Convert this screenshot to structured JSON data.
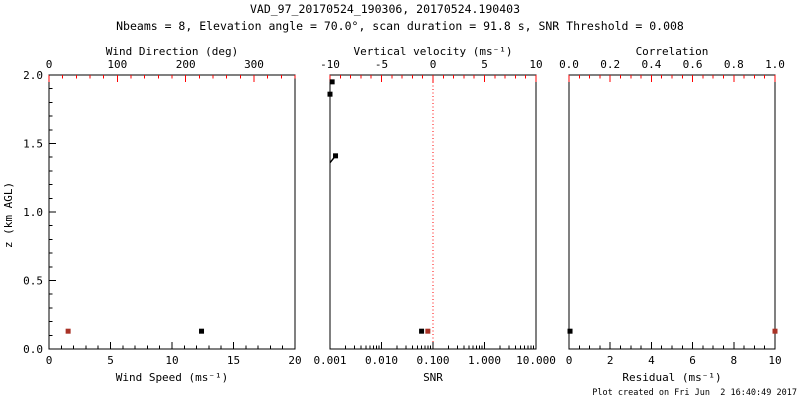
{
  "title": "VAD_97_20170524_190306, 20170524.190403",
  "subtitle": "Nbeams = 8, Elevation angle = 70.0°, scan duration = 91.8 s, SNR Threshold = 0.008",
  "footer": "Plot created on Fri Jun  2 16:40:49 2017",
  "colors": {
    "background": "#ffffff",
    "frame": "#000000",
    "axis_red": "#ff0000",
    "marker_black": "#000000",
    "marker_red": "#a93226"
  },
  "y_axis": {
    "label": "z (km AGL)",
    "min": 0,
    "max": 2,
    "major_ticks": [
      {
        "v": 0.0,
        "label": "0.0"
      },
      {
        "v": 0.5,
        "label": "0.5"
      },
      {
        "v": 1.0,
        "label": "1.0"
      },
      {
        "v": 1.5,
        "label": "1.5"
      },
      {
        "v": 2.0,
        "label": "2.0"
      }
    ],
    "minor_step": 0.1
  },
  "chart_data": [
    {
      "id": "wind",
      "type": "scatter",
      "show_y_labels": true,
      "bottom_axis": {
        "label": "Wind Speed (ms⁻¹)",
        "scale": "linear",
        "min": 0,
        "max": 20,
        "major_ticks": [
          {
            "v": 0,
            "label": "0"
          },
          {
            "v": 5,
            "label": "5"
          },
          {
            "v": 10,
            "label": "10"
          },
          {
            "v": 15,
            "label": "15"
          },
          {
            "v": 20,
            "label": "20"
          }
        ],
        "minor_step": 1
      },
      "top_axis": {
        "label": "Wind Direction (deg)",
        "scale": "linear",
        "min": 0,
        "max": 360,
        "major_ticks": [
          {
            "v": 0,
            "label": "0"
          },
          {
            "v": 100,
            "label": "100"
          },
          {
            "v": 200,
            "label": "200"
          },
          {
            "v": 300,
            "label": "300"
          }
        ],
        "minor_step": 20
      },
      "series": [
        {
          "name": "wind-speed",
          "axis": "bottom",
          "color": "black",
          "marker": "square",
          "points": [
            {
              "x": 12.4,
              "z": 0.13
            }
          ]
        },
        {
          "name": "wind-direction",
          "axis": "top",
          "color": "red",
          "marker": "square",
          "points": [
            {
              "x": 28,
              "z": 0.13
            }
          ]
        }
      ]
    },
    {
      "id": "snr",
      "type": "scatter",
      "show_y_labels": false,
      "bottom_axis": {
        "label": "SNR",
        "scale": "log",
        "min": 0.001,
        "max": 10,
        "major_ticks": [
          {
            "v": 0.001,
            "label": "0.001"
          },
          {
            "v": 0.01,
            "label": "0.010"
          },
          {
            "v": 0.1,
            "label": "0.100"
          },
          {
            "v": 1,
            "label": "1.000"
          },
          {
            "v": 10,
            "label": "10.000"
          }
        ]
      },
      "top_axis": {
        "label": "Vertical velocity (ms⁻¹)",
        "scale": "linear",
        "min": -10,
        "max": 10,
        "major_ticks": [
          {
            "v": -10,
            "label": "-10"
          },
          {
            "v": -5,
            "label": "-5"
          },
          {
            "v": 0,
            "label": "0"
          },
          {
            "v": 5,
            "label": "5"
          },
          {
            "v": 10,
            "label": "10"
          }
        ],
        "minor_step": 1
      },
      "reference_line": {
        "axis": "top",
        "value": 0,
        "style": "dotted",
        "color": "red"
      },
      "segments": [
        {
          "axis": "bottom",
          "x1": 0.001,
          "z1": 1.36,
          "x2": 0.00128,
          "z2": 1.41
        },
        {
          "axis": "bottom",
          "x1": 0.001,
          "z1": 1.95,
          "x2": 0.0011,
          "z2": 1.95
        }
      ],
      "series": [
        {
          "name": "snr",
          "axis": "bottom",
          "color": "black",
          "marker": "square",
          "points": [
            {
              "x": 0.0011,
              "z": 1.95
            },
            {
              "x": 0.001,
              "z": 1.86
            },
            {
              "x": 0.00128,
              "z": 1.41
            },
            {
              "x": 0.06,
              "z": 0.13
            }
          ]
        },
        {
          "name": "vertical-velocity",
          "axis": "top",
          "color": "red",
          "marker": "square",
          "points": [
            {
              "x": -0.5,
              "z": 0.13
            }
          ]
        }
      ]
    },
    {
      "id": "residual",
      "type": "scatter",
      "show_y_labels": false,
      "bottom_axis": {
        "label": "Residual (ms⁻¹)",
        "scale": "linear",
        "min": 0,
        "max": 10,
        "major_ticks": [
          {
            "v": 0,
            "label": "0"
          },
          {
            "v": 2,
            "label": "2"
          },
          {
            "v": 4,
            "label": "4"
          },
          {
            "v": 6,
            "label": "6"
          },
          {
            "v": 8,
            "label": "8"
          },
          {
            "v": 10,
            "label": "10"
          }
        ],
        "minor_step": 0.5
      },
      "top_axis": {
        "label": "Correlation",
        "scale": "linear",
        "min": 0,
        "max": 1,
        "major_ticks": [
          {
            "v": 0.0,
            "label": "0.0"
          },
          {
            "v": 0.2,
            "label": "0.2"
          },
          {
            "v": 0.4,
            "label": "0.4"
          },
          {
            "v": 0.6,
            "label": "0.6"
          },
          {
            "v": 0.8,
            "label": "0.8"
          },
          {
            "v": 1.0,
            "label": "1.0"
          }
        ],
        "minor_step": 0.05
      },
      "series": [
        {
          "name": "residual",
          "axis": "bottom",
          "color": "black",
          "marker": "square",
          "points": [
            {
              "x": 0.05,
              "z": 0.13
            }
          ]
        },
        {
          "name": "correlation",
          "axis": "top",
          "color": "red",
          "marker": "square",
          "points": [
            {
              "x": 1.0,
              "z": 0.13
            }
          ]
        }
      ]
    }
  ]
}
